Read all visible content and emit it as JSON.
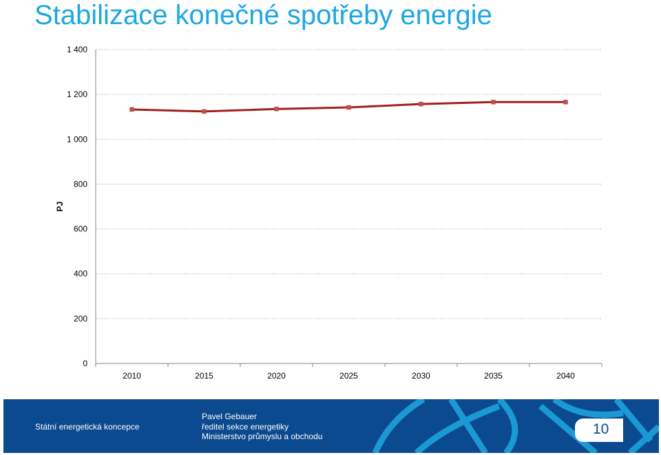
{
  "title": "Stabilizace konečné spotřeby energie",
  "chart_data": {
    "type": "line",
    "title": "Stabilizace konečné spotřeby energie",
    "ylabel": "PJ",
    "xlabel": "",
    "categories": [
      "2010",
      "2015",
      "2020",
      "2025",
      "2030",
      "2035",
      "2040"
    ],
    "series": [
      {
        "values": [
          1133,
          1124,
          1135,
          1142,
          1157,
          1166,
          1166
        ],
        "color": "#a41e1e",
        "marker_color": "#c0504d"
      }
    ],
    "ylim": [
      0,
      1400
    ],
    "yticks": [
      0,
      200,
      400,
      600,
      800,
      1000,
      1200,
      1400
    ],
    "ytick_labels": [
      "0",
      "200",
      "400",
      "600",
      "800",
      "1 000",
      "1 200",
      "1 400"
    ],
    "grid": true
  },
  "footer": {
    "org": "Státní energetická koncepce",
    "name": "Pavel Gebauer",
    "role": "ředitel sekce energetiky",
    "ministry": "Ministerstvo  průmyslu a obchodu",
    "page": "10"
  }
}
